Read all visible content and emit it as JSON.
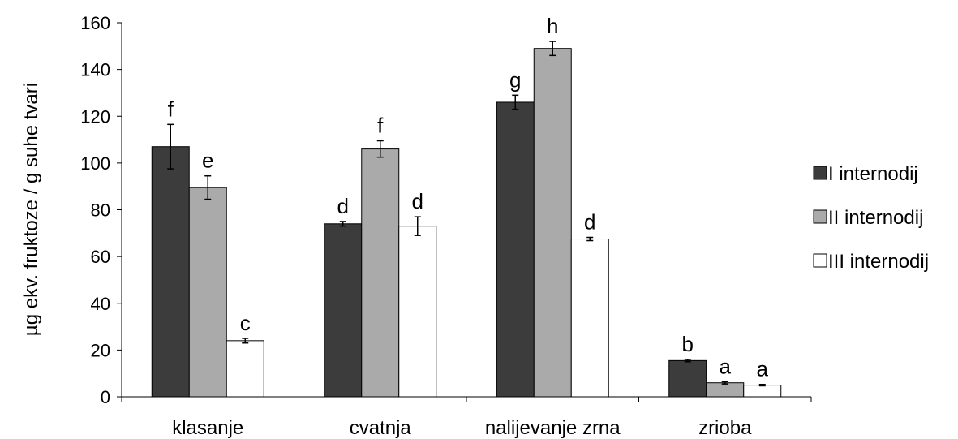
{
  "chart_data": {
    "type": "bar",
    "title": "",
    "xlabel": "",
    "ylabel": "µg ekv. fruktoze / g suhe tvari",
    "ylim": [
      0,
      160
    ],
    "yticks": [
      0,
      20,
      40,
      60,
      80,
      100,
      120,
      140,
      160
    ],
    "grid": false,
    "legend_position": "right",
    "categories": [
      "klasanje",
      "cvatnja",
      "nalijevanje zrna",
      "zrioba"
    ],
    "series": [
      {
        "name": "I internodij",
        "color": "#3c3c3c",
        "values": [
          107,
          74,
          126,
          15.5
        ],
        "errors": [
          9.5,
          1,
          3,
          0.5
        ],
        "letters": [
          "f",
          "d",
          "g",
          "b"
        ]
      },
      {
        "name": "II internodij",
        "color": "#aaaaaa",
        "values": [
          89.5,
          106,
          149,
          6
        ],
        "errors": [
          5,
          3.5,
          3,
          0.5
        ],
        "letters": [
          "e",
          "f",
          "h",
          "a"
        ]
      },
      {
        "name": "III internodij",
        "color": "#ffffff",
        "values": [
          24,
          73,
          67.5,
          5
        ],
        "errors": [
          1,
          4,
          0.7,
          0.3
        ],
        "letters": [
          "c",
          "d",
          "d",
          "a"
        ]
      }
    ]
  }
}
